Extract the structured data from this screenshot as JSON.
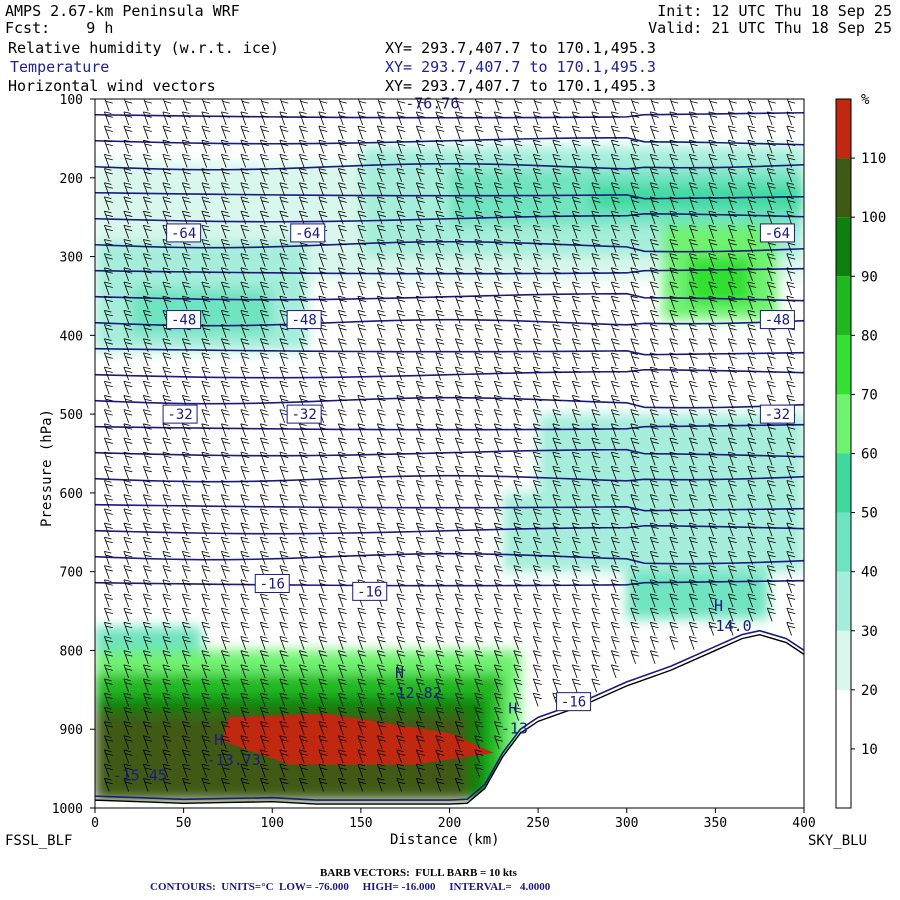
{
  "header": {
    "model": "AMPS 2.67-km Peninsula WRF",
    "init": "Init: 12 UTC Thu 18 Sep 25",
    "fcst": "Fcst:    9 h",
    "valid": "Valid: 21 UTC Thu 18 Sep 25",
    "fields": [
      {
        "name": "Relative humidity (w.r.t. ice)",
        "xy": "XY= 293.7,407.7 to 170.1,495.3"
      },
      {
        "name": "Temperature",
        "xy": "XY= 293.7,407.7 to 170.1,495.3"
      },
      {
        "name": "Horizontal wind vectors",
        "xy": "XY= 293.7,407.7 to 170.1,495.3"
      }
    ]
  },
  "endpoints": {
    "left": "FSSL_BLF",
    "right": "SKY_BLU"
  },
  "footer": {
    "barb": "BARB VECTORS:  FULL BARB = 10 kts",
    "contours": "CONTOURS:  UNITS=°C  LOW= -76.000     HIGH= -16.000     INTERVAL=   4.0000"
  },
  "colors": {
    "temp_line": "#1a1a80",
    "rh_scale": [
      "#ffffff",
      "#ffffff",
      "#ffffff",
      "#d9f7ec",
      "#a6eedb",
      "#6fe3c0",
      "#3fd9a0",
      "#6ff26f",
      "#33e033",
      "#20b820",
      "#0e800e",
      "#3f5a14",
      "#c02810"
    ]
  },
  "chart_data": {
    "type": "heatmap",
    "title": "Cross-section: Relative humidity (w.r.t. ice), Temperature, Horizontal wind vectors",
    "xlabel": "Distance (km)",
    "ylabel": "Pressure (hPa)",
    "xlim": [
      0,
      400
    ],
    "ylim": [
      1000,
      100
    ],
    "x_ticks": [
      0,
      50,
      100,
      150,
      200,
      250,
      300,
      350,
      400
    ],
    "y_ticks": [
      100,
      200,
      300,
      400,
      500,
      600,
      700,
      800,
      900,
      1000
    ],
    "colorbar": {
      "unit": "%",
      "levels": [
        10,
        20,
        30,
        40,
        50,
        60,
        70,
        80,
        90,
        100,
        110
      ],
      "labels": [
        "10",
        "20",
        "30",
        "40",
        "50",
        "60",
        "70",
        "80",
        "90",
        "100",
        "110"
      ]
    },
    "terrain_surface": {
      "distance_km": [
        0,
        25,
        50,
        75,
        100,
        125,
        150,
        175,
        200,
        210,
        220,
        230,
        240,
        250,
        275,
        300,
        325,
        350,
        365,
        375,
        390,
        400
      ],
      "pressure_hpa": [
        990,
        992,
        994,
        993,
        992,
        995,
        995,
        995,
        995,
        994,
        975,
        935,
        905,
        890,
        870,
        845,
        825,
        800,
        785,
        780,
        790,
        805
      ]
    },
    "isotherm_labels": [
      {
        "label": "-64",
        "distance_km": 50,
        "pressure_hpa": 270
      },
      {
        "label": "-64",
        "distance_km": 120,
        "pressure_hpa": 270
      },
      {
        "label": "-64",
        "distance_km": 385,
        "pressure_hpa": 270
      },
      {
        "label": "-48",
        "distance_km": 50,
        "pressure_hpa": 380
      },
      {
        "label": "-48",
        "distance_km": 118,
        "pressure_hpa": 380
      },
      {
        "label": "-48",
        "distance_km": 385,
        "pressure_hpa": 380
      },
      {
        "label": "-32",
        "distance_km": 48,
        "pressure_hpa": 500
      },
      {
        "label": "-32",
        "distance_km": 118,
        "pressure_hpa": 500
      },
      {
        "label": "-32",
        "distance_km": 385,
        "pressure_hpa": 500
      },
      {
        "label": "-16",
        "distance_km": 100,
        "pressure_hpa": 715
      },
      {
        "label": "-16",
        "distance_km": 155,
        "pressure_hpa": 725
      },
      {
        "label": "-16",
        "distance_km": 270,
        "pressure_hpa": 865
      }
    ],
    "extrema": [
      {
        "mark": "H",
        "value": "-12.82",
        "distance_km": 165,
        "pressure_hpa": 850
      },
      {
        "mark": "H",
        "value": "-13.73",
        "distance_km": 63,
        "pressure_hpa": 935
      },
      {
        "mark": "H",
        "value": "-14.0",
        "distance_km": 345,
        "pressure_hpa": 765
      },
      {
        "mark": "H",
        "value": "-13",
        "distance_km": 229,
        "pressure_hpa": 895
      },
      {
        "mark": "",
        "value": "-15.45",
        "distance_km": 10,
        "pressure_hpa": 955
      },
      {
        "mark": "",
        "value": "-76.76",
        "distance_km": 175,
        "pressure_hpa": 102
      }
    ]
  }
}
